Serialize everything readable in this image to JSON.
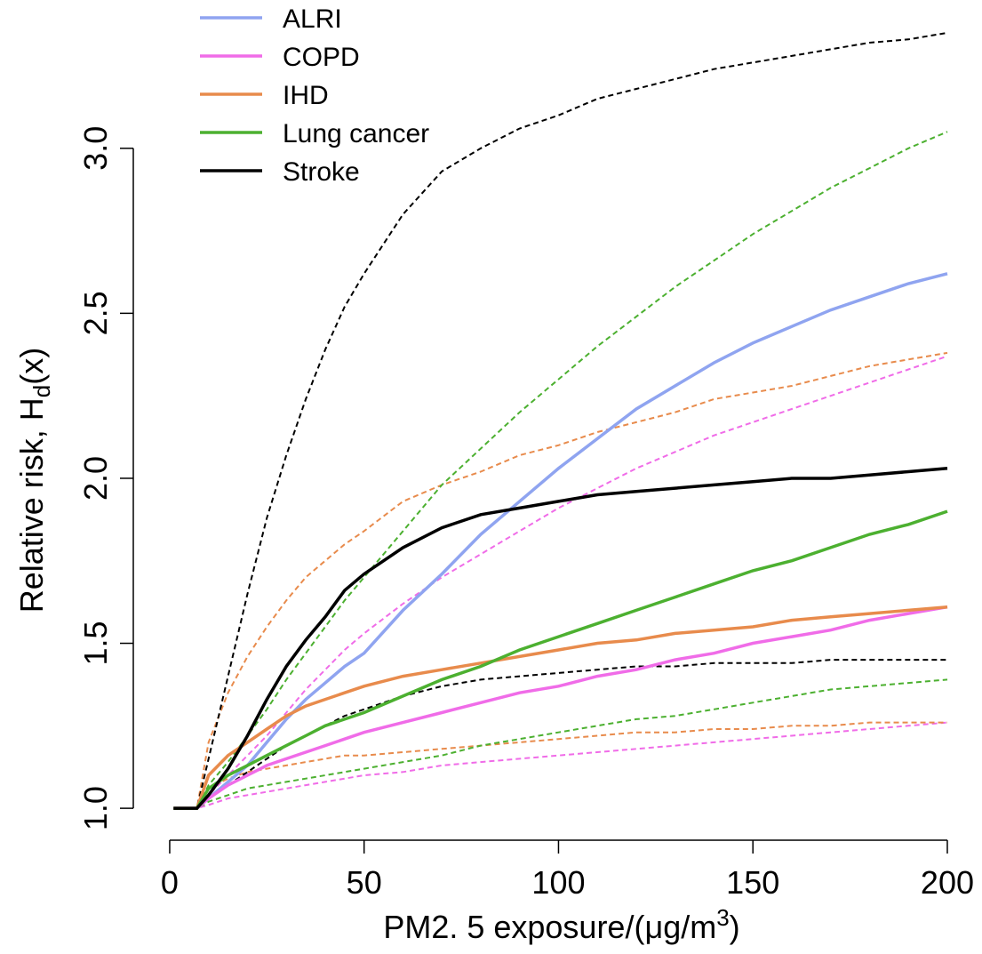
{
  "chart_data": {
    "type": "line",
    "xlabel": {
      "text": "PM2. 5 exposure/(μg/m",
      "sup": "3",
      "suffix": ")"
    },
    "ylabel": {
      "text": "Relative risk, H",
      "sub": "d",
      "suffix": "(x)"
    },
    "x": [
      1,
      7,
      10,
      15,
      20,
      25,
      30,
      35,
      40,
      45,
      50,
      60,
      70,
      80,
      90,
      100,
      110,
      120,
      130,
      140,
      150,
      160,
      170,
      180,
      190,
      200
    ],
    "xlim": [
      -6.96,
      207.96
    ],
    "xticks": [
      0,
      50,
      100,
      150,
      200
    ],
    "ylim": [
      0.906,
      3.444
    ],
    "yticks": [
      {
        "value": 1,
        "label": "1.0"
      },
      {
        "value": 1.5,
        "label": "1.5"
      },
      {
        "value": 2,
        "label": "2.0"
      },
      {
        "value": 2.5,
        "label": "2.5"
      },
      {
        "value": 3,
        "label": "3.0"
      }
    ],
    "legend": "top-left",
    "series": [
      {
        "name": "ALRI",
        "color": "#8fa4f0",
        "values": [
          1,
          1,
          1.03,
          1.08,
          1.13,
          1.2,
          1.27,
          1.33,
          1.38,
          1.43,
          1.47,
          1.6,
          1.71,
          1.83,
          1.93,
          2.03,
          2.12,
          2.21,
          2.28,
          2.35,
          2.41,
          2.46,
          2.51,
          2.55,
          2.59,
          2.62
        ]
      },
      {
        "name": "COPD",
        "color": "#f06ce8",
        "values": [
          1,
          1,
          1.03,
          1.07,
          1.1,
          1.13,
          1.15,
          1.17,
          1.19,
          1.21,
          1.23,
          1.26,
          1.29,
          1.32,
          1.35,
          1.37,
          1.4,
          1.42,
          1.45,
          1.47,
          1.5,
          1.52,
          1.54,
          1.57,
          1.59,
          1.61
        ],
        "upper": [
          1,
          1,
          1.04,
          1.1,
          1.16,
          1.22,
          1.29,
          1.36,
          1.42,
          1.48,
          1.53,
          1.62,
          1.7,
          1.77,
          1.84,
          1.91,
          1.97,
          2.03,
          2.08,
          2.13,
          2.17,
          2.21,
          2.25,
          2.29,
          2.33,
          2.37
        ],
        "lower": [
          1,
          1,
          1.01,
          1.03,
          1.04,
          1.05,
          1.06,
          1.07,
          1.08,
          1.09,
          1.1,
          1.11,
          1.13,
          1.14,
          1.15,
          1.16,
          1.17,
          1.18,
          1.19,
          1.2,
          1.21,
          1.22,
          1.23,
          1.24,
          1.25,
          1.26
        ]
      },
      {
        "name": "IHD",
        "color": "#e88b4c",
        "values": [
          1,
          1,
          1.1,
          1.16,
          1.2,
          1.24,
          1.28,
          1.31,
          1.33,
          1.35,
          1.37,
          1.4,
          1.42,
          1.44,
          1.46,
          1.48,
          1.5,
          1.51,
          1.53,
          1.54,
          1.55,
          1.57,
          1.58,
          1.59,
          1.6,
          1.61
        ],
        "upper": [
          1,
          1,
          1.2,
          1.35,
          1.46,
          1.55,
          1.63,
          1.7,
          1.75,
          1.8,
          1.84,
          1.93,
          1.98,
          2.02,
          2.07,
          2.1,
          2.14,
          2.17,
          2.2,
          2.24,
          2.26,
          2.28,
          2.31,
          2.34,
          2.36,
          2.38
        ],
        "lower": [
          1,
          1,
          1.06,
          1.09,
          1.11,
          1.12,
          1.13,
          1.14,
          1.15,
          1.16,
          1.16,
          1.17,
          1.18,
          1.19,
          1.2,
          1.21,
          1.22,
          1.23,
          1.23,
          1.24,
          1.24,
          1.25,
          1.25,
          1.26,
          1.26,
          1.26
        ]
      },
      {
        "name": "Lung cancer",
        "color": "#4cb030",
        "values": [
          1,
          1,
          1.06,
          1.1,
          1.13,
          1.16,
          1.19,
          1.22,
          1.25,
          1.27,
          1.29,
          1.34,
          1.39,
          1.43,
          1.48,
          1.52,
          1.56,
          1.6,
          1.64,
          1.68,
          1.72,
          1.75,
          1.79,
          1.83,
          1.86,
          1.9
        ],
        "upper": [
          1,
          1,
          1.07,
          1.14,
          1.22,
          1.3,
          1.39,
          1.47,
          1.55,
          1.63,
          1.7,
          1.84,
          1.98,
          2.09,
          2.2,
          2.3,
          2.4,
          2.49,
          2.58,
          2.66,
          2.74,
          2.81,
          2.88,
          2.94,
          3,
          3.05
        ],
        "lower": [
          1,
          1,
          1.02,
          1.04,
          1.06,
          1.07,
          1.08,
          1.09,
          1.1,
          1.11,
          1.12,
          1.14,
          1.16,
          1.19,
          1.21,
          1.23,
          1.25,
          1.27,
          1.28,
          1.3,
          1.32,
          1.34,
          1.36,
          1.37,
          1.38,
          1.39
        ]
      },
      {
        "name": "Stroke",
        "color": "#000000",
        "values": [
          1,
          1,
          1.04,
          1.12,
          1.22,
          1.33,
          1.43,
          1.51,
          1.58,
          1.66,
          1.71,
          1.79,
          1.85,
          1.89,
          1.91,
          1.93,
          1.95,
          1.96,
          1.97,
          1.98,
          1.99,
          2,
          2,
          2.01,
          2.02,
          2.03
        ],
        "upper": [
          1,
          1,
          1.15,
          1.4,
          1.65,
          1.88,
          2.07,
          2.24,
          2.39,
          2.52,
          2.62,
          2.8,
          2.93,
          3,
          3.06,
          3.1,
          3.15,
          3.18,
          3.21,
          3.24,
          3.26,
          3.28,
          3.3,
          3.32,
          3.33,
          3.35
        ],
        "lower": [
          1,
          1,
          1.03,
          1.07,
          1.11,
          1.15,
          1.19,
          1.22,
          1.25,
          1.28,
          1.3,
          1.34,
          1.37,
          1.39,
          1.4,
          1.41,
          1.42,
          1.43,
          1.43,
          1.44,
          1.44,
          1.44,
          1.45,
          1.45,
          1.45,
          1.45
        ]
      }
    ]
  }
}
